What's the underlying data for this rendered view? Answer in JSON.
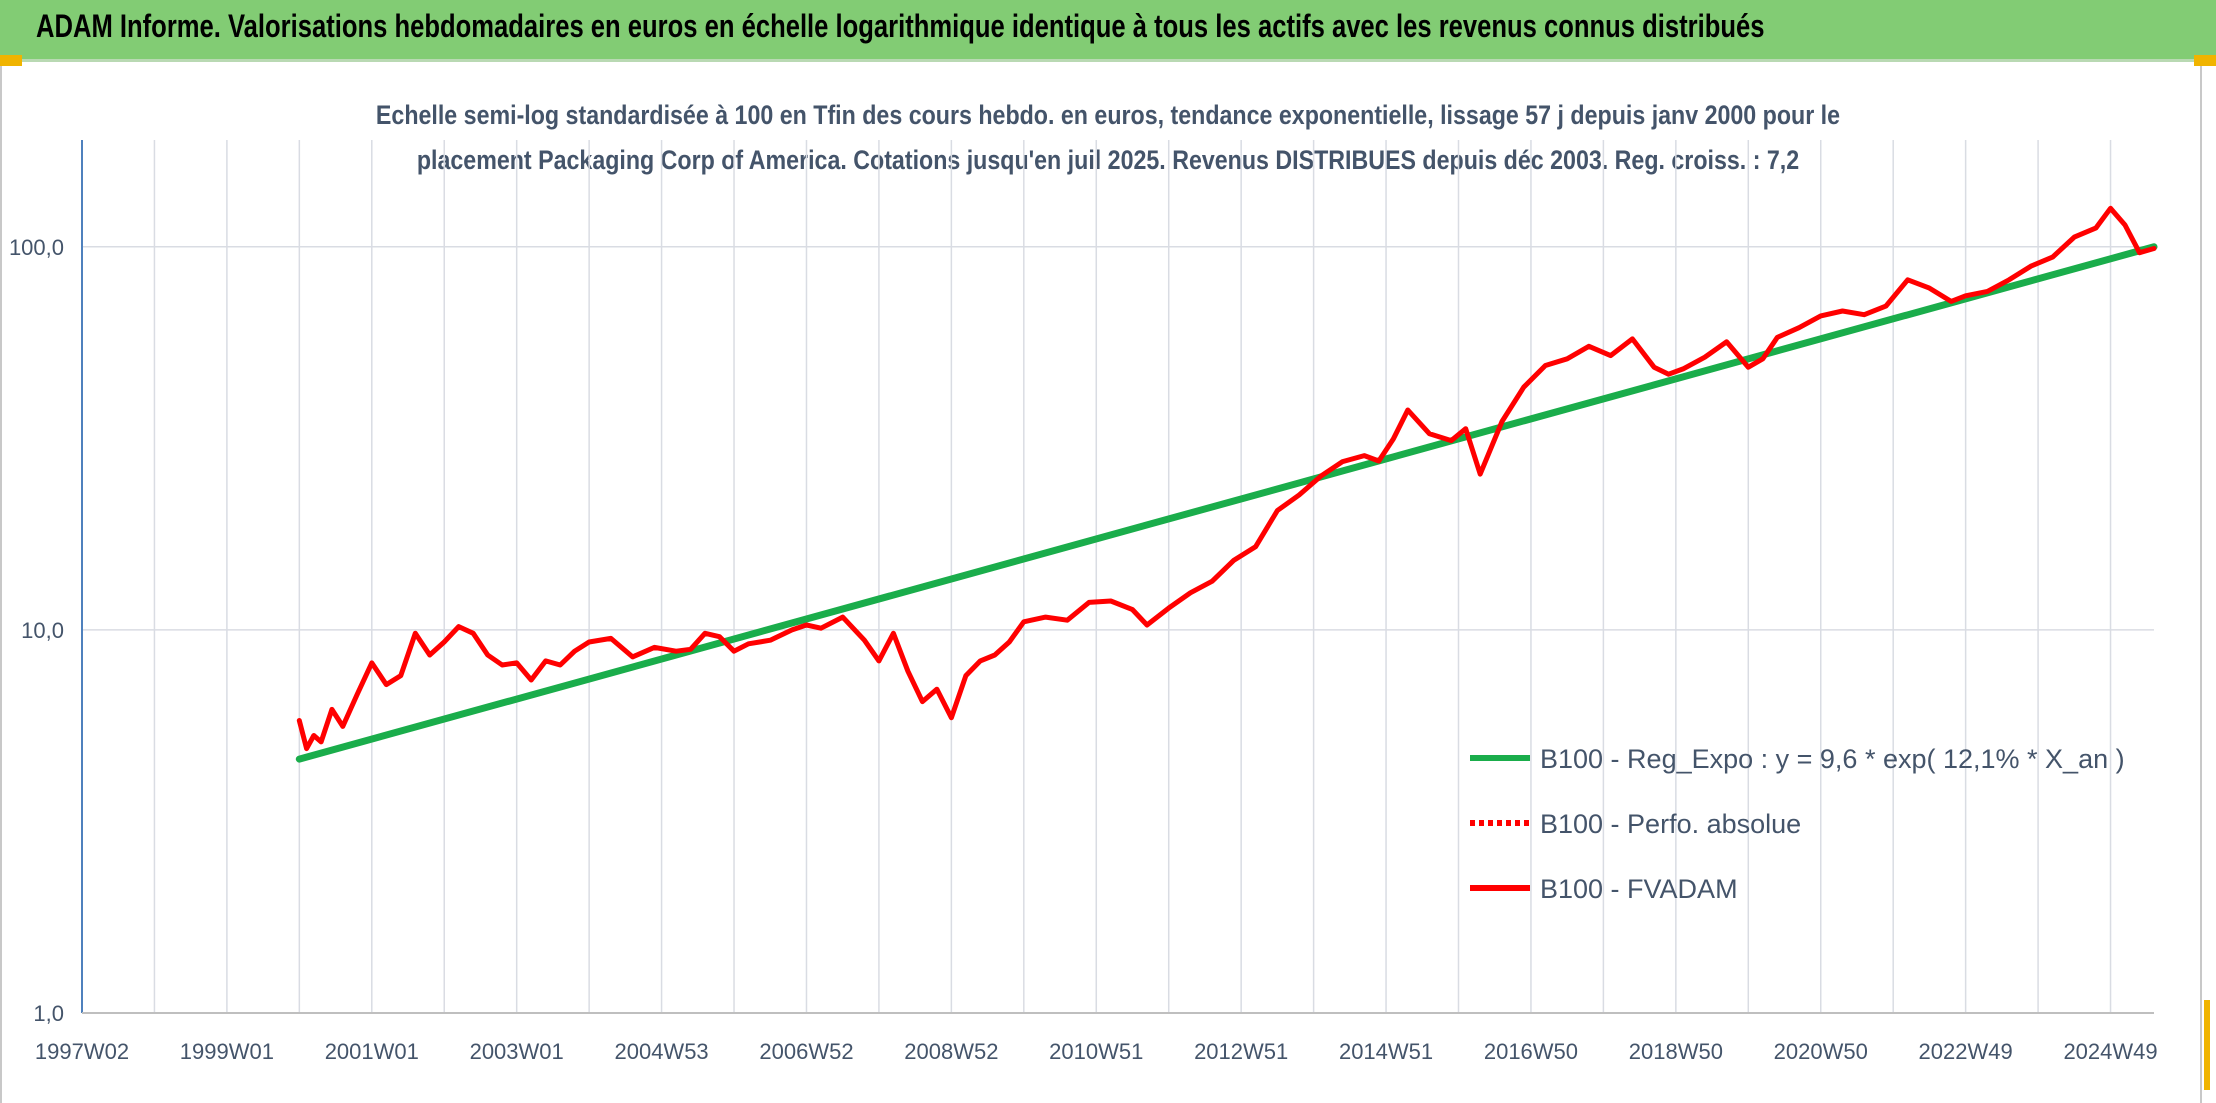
{
  "banner": {
    "title": "ADAM Informe. Valorisations hebdomadaires en euros en échelle logarithmique identique à tous les actifs avec les revenus connus distribués",
    "color": "#82cc74"
  },
  "colors": {
    "trend": "#1aad4b",
    "fvadam": "#ff0000",
    "perfo": "#ff0000",
    "grid": "#d9dce3",
    "axis_text": "#44546a",
    "y_axis_line": "#4f81bd",
    "corner_accent": "#f0b400"
  },
  "chart_data": {
    "type": "line",
    "title_lines": [
      "Echelle semi-log standardisée à 100 en Tfin des cours hebdo. en euros, tendance exponentielle, lissage 57 j depuis janv 2000 pour le",
      "placement Packaging Corp of America. Cotations jusqu'en juil 2025. Revenus DISTRIBUES depuis déc 2003. Reg. croiss. : 7,2"
    ],
    "y_scale": "log",
    "ylim": [
      1,
      190
    ],
    "xlim": [
      1997.0,
      2025.6
    ],
    "y_ticks": [
      1,
      10,
      100
    ],
    "y_tick_labels": [
      "1,0",
      "10,0",
      "100,0"
    ],
    "x_ticks": [
      1997.0,
      1999.0,
      2001.0,
      2003.0,
      2005.0,
      2007.0,
      2009.0,
      2011.0,
      2013.0,
      2015.0,
      2017.0,
      2019.0,
      2021.0,
      2023.0,
      2025.0
    ],
    "x_tick_labels": [
      "1997W02",
      "1999W01",
      "2001W01",
      "2003W01",
      "2004W53",
      "2006W52",
      "2008W52",
      "2010W51",
      "2012W51",
      "2014W51",
      "2016W50",
      "2018W50",
      "2020W50",
      "2022W49",
      "2024W49"
    ],
    "grid": true,
    "legend_position": "right-lower",
    "legend": [
      {
        "label": "B100 - Reg_Expo : y = 9,6 * exp( 12,1% *  X_an )",
        "style": "solid-green"
      },
      {
        "label": "B100 - Perfo. absolue",
        "style": "dotted-red"
      },
      {
        "label": "B100 - FVADAM",
        "style": "solid-red"
      }
    ],
    "series": [
      {
        "name": "B100 - Reg_Expo : y = 9,6 * exp( 12,1% *  X_an )",
        "x": [
          2000.0,
          2025.6
        ],
        "y": [
          4.6,
          100.0
        ]
      },
      {
        "name": "B100 - FVADAM",
        "x": [
          2000.0,
          2000.1,
          2000.2,
          2000.3,
          2000.45,
          2000.6,
          2000.8,
          2001.0,
          2001.2,
          2001.4,
          2001.6,
          2001.8,
          2002.0,
          2002.2,
          2002.4,
          2002.6,
          2002.8,
          2003.0,
          2003.2,
          2003.4,
          2003.6,
          2003.8,
          2004.0,
          2004.3,
          2004.6,
          2004.9,
          2005.2,
          2005.4,
          2005.6,
          2005.8,
          2006.0,
          2006.2,
          2006.5,
          2006.8,
          2007.0,
          2007.2,
          2007.5,
          2007.8,
          2008.0,
          2008.2,
          2008.4,
          2008.6,
          2008.8,
          2009.0,
          2009.2,
          2009.4,
          2009.6,
          2009.8,
          2010.0,
          2010.3,
          2010.6,
          2010.9,
          2011.2,
          2011.5,
          2011.7,
          2012.0,
          2012.3,
          2012.6,
          2012.9,
          2013.2,
          2013.5,
          2013.8,
          2014.1,
          2014.4,
          2014.7,
          2014.9,
          2015.1,
          2015.3,
          2015.6,
          2015.9,
          2016.1,
          2016.3,
          2016.6,
          2016.9,
          2017.2,
          2017.5,
          2017.8,
          2018.1,
          2018.4,
          2018.7,
          2018.9,
          2019.1,
          2019.4,
          2019.7,
          2020.0,
          2020.2,
          2020.4,
          2020.7,
          2021.0,
          2021.3,
          2021.6,
          2021.9,
          2022.2,
          2022.5,
          2022.8,
          2023.0,
          2023.3,
          2023.6,
          2023.9,
          2024.2,
          2024.5,
          2024.8,
          2025.0,
          2025.2,
          2025.4,
          2025.6
        ],
        "y": [
          5.8,
          4.9,
          5.3,
          5.1,
          6.2,
          5.6,
          6.8,
          8.2,
          7.2,
          7.6,
          9.8,
          8.6,
          9.3,
          10.2,
          9.8,
          8.6,
          8.1,
          8.2,
          7.4,
          8.3,
          8.1,
          8.8,
          9.3,
          9.5,
          8.5,
          9.0,
          8.8,
          8.9,
          9.8,
          9.6,
          8.8,
          9.2,
          9.4,
          10.0,
          10.3,
          10.1,
          10.8,
          9.4,
          8.3,
          9.8,
          7.8,
          6.5,
          7.0,
          5.9,
          7.6,
          8.3,
          8.6,
          9.3,
          10.5,
          10.8,
          10.6,
          11.8,
          11.9,
          11.3,
          10.3,
          11.4,
          12.5,
          13.4,
          15.2,
          16.5,
          20.5,
          22.5,
          25.2,
          27.5,
          28.5,
          27.6,
          31.5,
          37.5,
          32.5,
          31.2,
          33.5,
          25.5,
          35.0,
          43.0,
          49.0,
          51.0,
          55.0,
          52.0,
          57.5,
          48.5,
          46.5,
          48.0,
          51.5,
          56.5,
          48.5,
          51.0,
          58.0,
          61.5,
          66.0,
          68.0,
          66.5,
          70.0,
          82.0,
          78.0,
          72.0,
          74.5,
          76.5,
          82.0,
          89.0,
          94.0,
          106.0,
          112.0,
          126.0,
          114.0,
          96.5,
          99.0
        ]
      },
      {
        "name": "B100 - Perfo. absolue",
        "x": [],
        "y": []
      }
    ]
  }
}
